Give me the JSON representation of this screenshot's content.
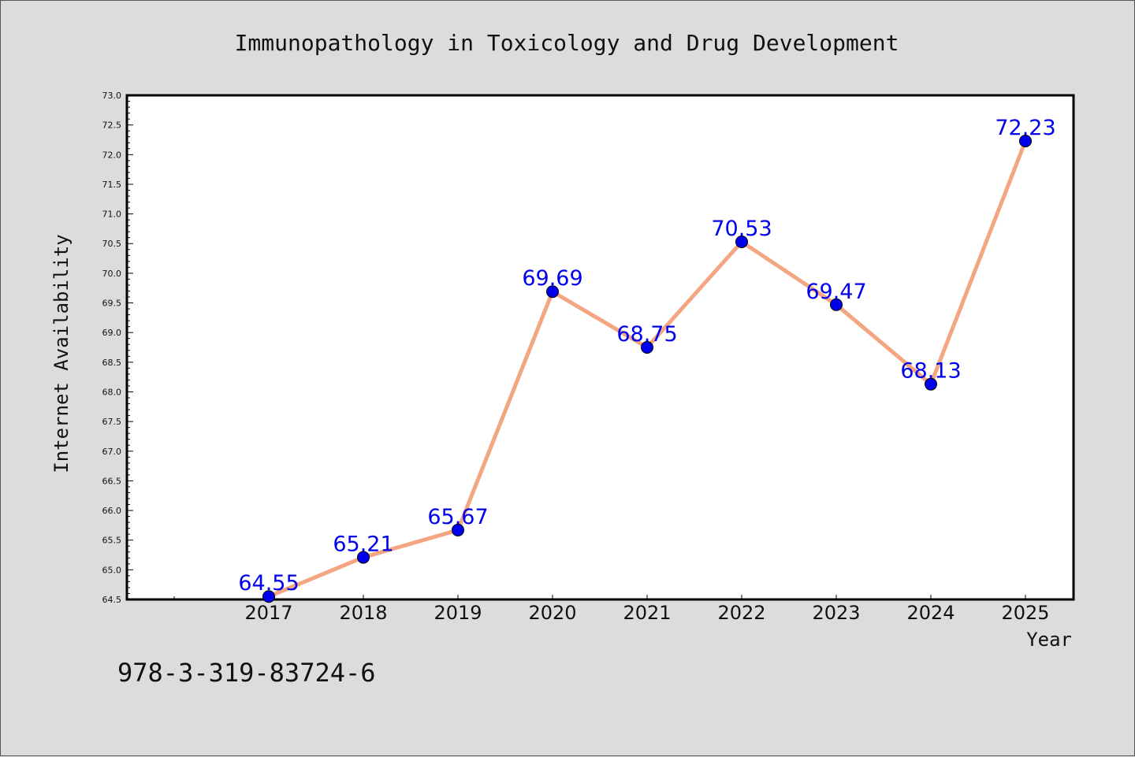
{
  "footer": {
    "isbn": "978-3-319-83724-6"
  },
  "colors": {
    "background": "#dcdcdc",
    "line": "#f4a582",
    "marker": "#0000ee",
    "label": "#0000ee"
  },
  "chart_data": {
    "type": "line",
    "title": "Immunopathology in Toxicology and Drug Development",
    "xlabel": "Year",
    "ylabel": "Internet Availability",
    "categories": [
      "2017",
      "2018",
      "2019",
      "2020",
      "2021",
      "2022",
      "2023",
      "2024",
      "2025"
    ],
    "series": [
      {
        "values": [
          64.55,
          65.21,
          65.67,
          69.69,
          68.75,
          70.53,
          69.47,
          68.13,
          72.23
        ]
      }
    ],
    "data_labels": [
      "64.55",
      "65.21",
      "65.67",
      "69.69",
      "68.75",
      "70.53",
      "69.47",
      "68.13",
      "72.23"
    ],
    "ylim": [
      64.5,
      73.0
    ],
    "yticks": [
      "64.5",
      "65.0",
      "65.5",
      "66.0",
      "66.5",
      "67.0",
      "67.5",
      "68.0",
      "68.5",
      "69.0",
      "69.5",
      "70.0",
      "70.5",
      "71.0",
      "71.5",
      "72.0",
      "72.5",
      "73.0"
    ],
    "grid": false,
    "legend": "none"
  }
}
